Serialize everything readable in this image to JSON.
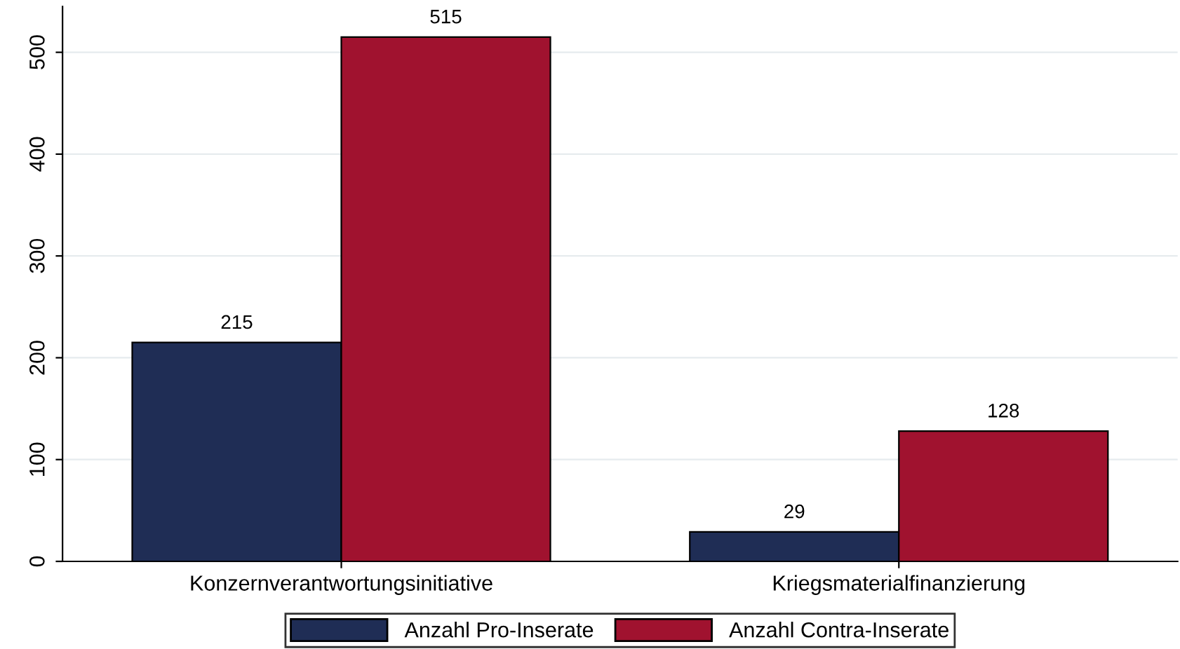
{
  "chart_data": {
    "type": "bar",
    "categories": [
      "Konzernverantwortungsinitiative",
      "Kriegsmaterialfinanzierung"
    ],
    "series": [
      {
        "name": "Anzahl Pro-Inserate",
        "color": "#1f2d55",
        "values": [
          215,
          29
        ]
      },
      {
        "name": "Anzahl Contra-Inserate",
        "color": "#a0122f",
        "values": [
          515,
          128
        ]
      }
    ],
    "ylim": [
      0,
      545
    ],
    "yticks": [
      0,
      100,
      200,
      300,
      400,
      500
    ],
    "grid": "y",
    "legend": "bottom",
    "data_labels": true
  }
}
